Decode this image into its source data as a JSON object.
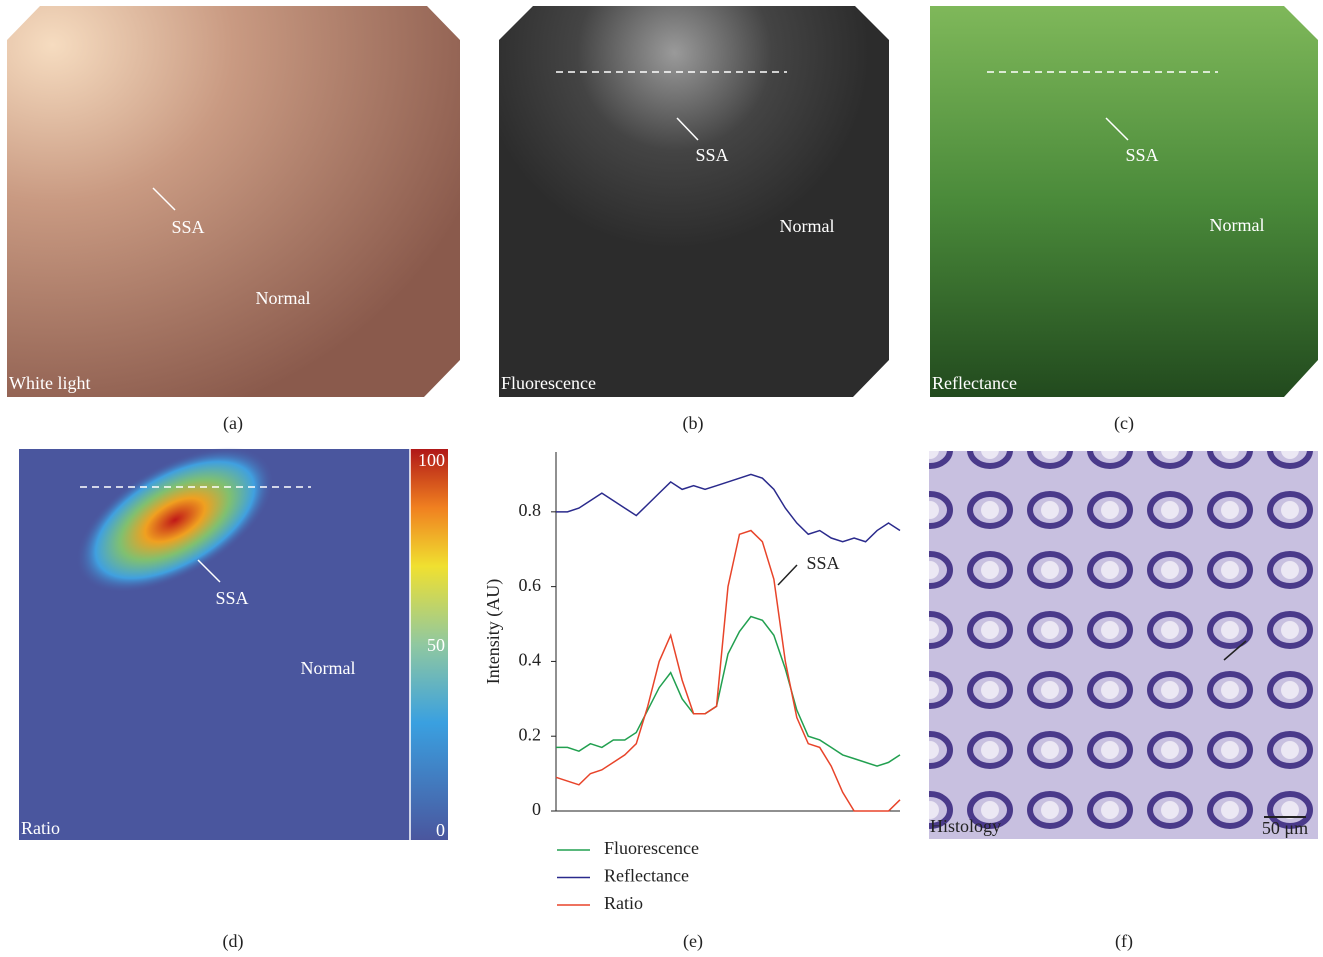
{
  "panels": [
    {
      "caption": "(a)",
      "label": "White light",
      "annotations": [
        "SSA",
        "Normal"
      ]
    },
    {
      "caption": "(b)",
      "label": "Fluorescence",
      "annotations": [
        "SSA",
        "Normal"
      ]
    },
    {
      "caption": "(c)",
      "label": "Reflectance",
      "annotations": [
        "SSA",
        "Normal"
      ]
    },
    {
      "caption": "(d)",
      "label": "Ratio",
      "annotations": [
        "SSA",
        "Normal"
      ],
      "colorbar_lim": [
        0,
        100
      ],
      "colorbar_ticks": [
        0,
        50,
        100
      ]
    },
    {
      "caption": "(e)",
      "annotations": [
        "SSA"
      ]
    },
    {
      "caption": "(f)",
      "label": "Histology",
      "scale_bar": "50 μm"
    }
  ],
  "chart_data": {
    "type": "line",
    "ylabel": "Intensity (AU)",
    "ylim": [
      0,
      0.96
    ],
    "yticks": [
      0,
      0.2,
      0.4,
      0.6,
      0.8
    ],
    "series": [
      {
        "name": "Fluorescence",
        "color": "#22a050",
        "values": [
          0.17,
          0.17,
          0.16,
          0.18,
          0.17,
          0.19,
          0.19,
          0.21,
          0.27,
          0.33,
          0.37,
          0.3,
          0.26,
          0.26,
          0.28,
          0.42,
          0.48,
          0.52,
          0.51,
          0.47,
          0.38,
          0.27,
          0.2,
          0.19,
          0.17,
          0.15,
          0.14,
          0.13,
          0.12,
          0.13,
          0.15
        ]
      },
      {
        "name": "Reflectance",
        "color": "#2a2a8c",
        "values": [
          0.8,
          0.8,
          0.81,
          0.83,
          0.85,
          0.83,
          0.81,
          0.79,
          0.82,
          0.85,
          0.88,
          0.86,
          0.87,
          0.86,
          0.87,
          0.88,
          0.89,
          0.9,
          0.89,
          0.86,
          0.81,
          0.77,
          0.74,
          0.75,
          0.73,
          0.72,
          0.73,
          0.72,
          0.75,
          0.77,
          0.75
        ]
      },
      {
        "name": "Ratio",
        "color": "#e8442a",
        "values": [
          0.09,
          0.08,
          0.07,
          0.1,
          0.11,
          0.13,
          0.15,
          0.18,
          0.28,
          0.4,
          0.47,
          0.35,
          0.26,
          0.26,
          0.28,
          0.6,
          0.74,
          0.75,
          0.72,
          0.62,
          0.4,
          0.25,
          0.18,
          0.17,
          0.12,
          0.05,
          0,
          0,
          0,
          0,
          0.03
        ]
      }
    ]
  }
}
